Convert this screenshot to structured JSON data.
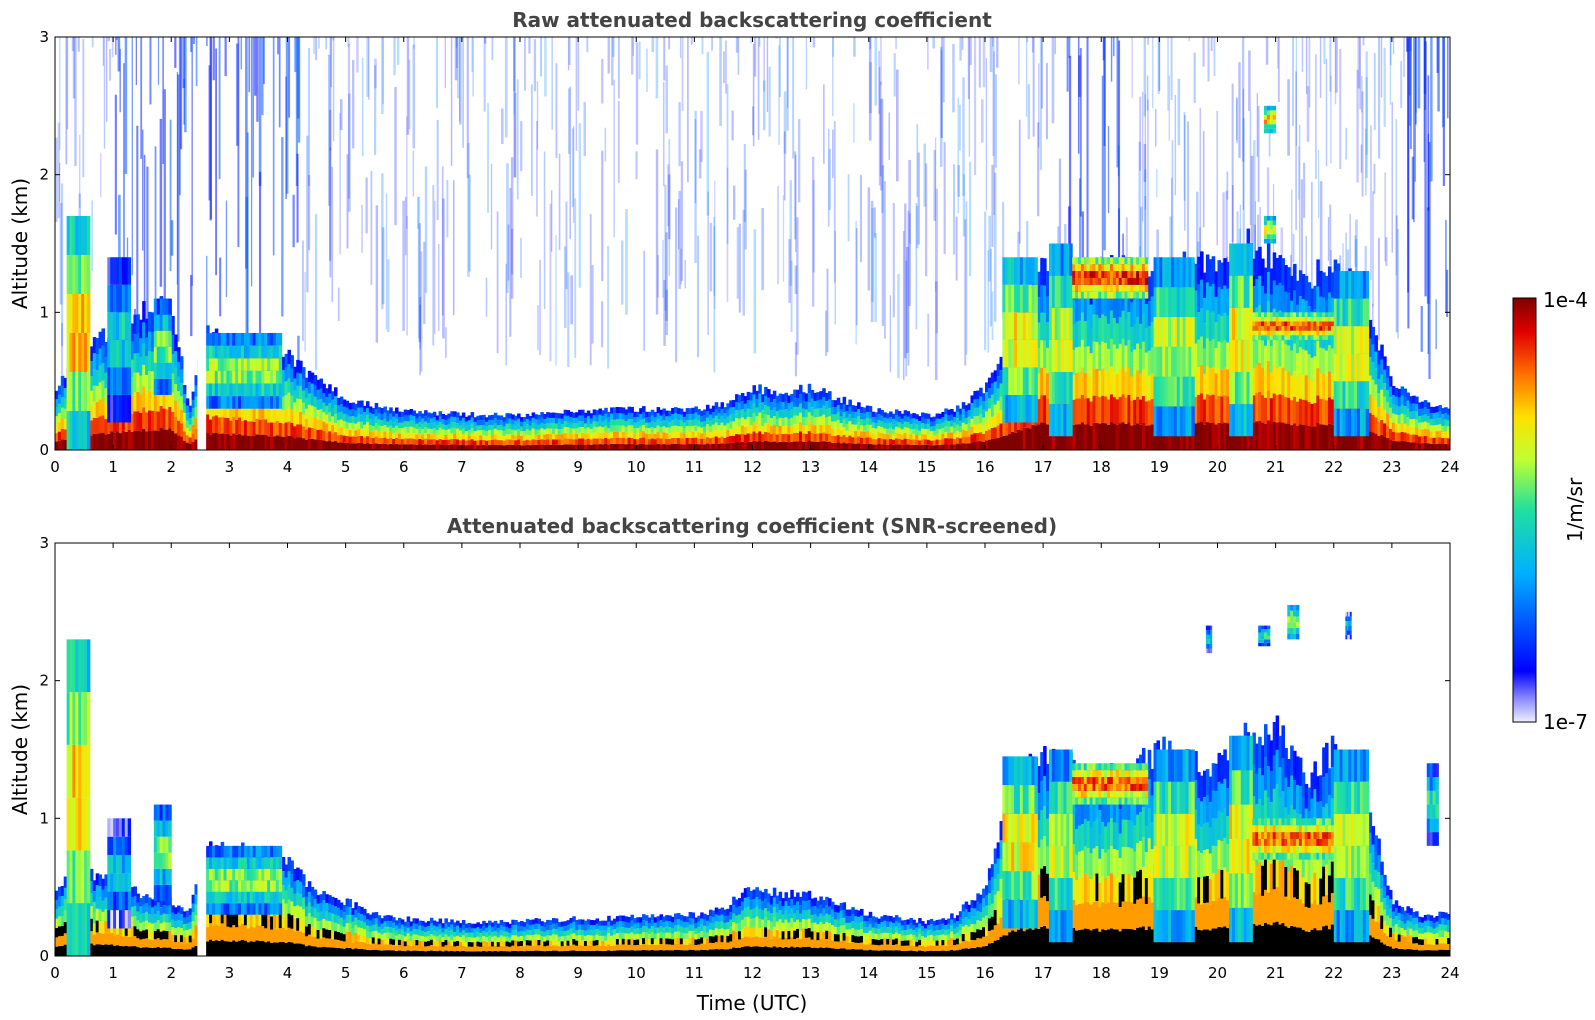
{
  "chart_data": [
    {
      "type": "heatmap",
      "title": "Raw attenuated backscattering coefficient",
      "xlabel": "",
      "ylabel": "Altitude (km)",
      "xlim": [
        0,
        24
      ],
      "ylim": [
        0,
        3
      ],
      "x_ticks": [
        0,
        1,
        2,
        3,
        4,
        5,
        6,
        7,
        8,
        9,
        10,
        11,
        12,
        13,
        14,
        15,
        16,
        17,
        18,
        19,
        20,
        21,
        22,
        23,
        24
      ],
      "y_ticks": [
        0,
        1,
        2,
        3
      ],
      "grid": false,
      "noise_background": true,
      "data_gaps": [
        [
          2.45,
          2.6
        ]
      ],
      "boundary_layer": [
        [
          0,
          0.45
        ],
        [
          0.5,
          0.7
        ],
        [
          1,
          0.9
        ],
        [
          1.5,
          1.0
        ],
        [
          2,
          1.1
        ],
        [
          2.3,
          0.3
        ],
        [
          2.6,
          0.85
        ],
        [
          3,
          0.8
        ],
        [
          3.5,
          0.75
        ],
        [
          4,
          0.7
        ],
        [
          4.5,
          0.5
        ],
        [
          5,
          0.38
        ],
        [
          5.5,
          0.32
        ],
        [
          6,
          0.28
        ],
        [
          7,
          0.26
        ],
        [
          8,
          0.25
        ],
        [
          9,
          0.28
        ],
        [
          10,
          0.3
        ],
        [
          11,
          0.3
        ],
        [
          11.5,
          0.33
        ],
        [
          12,
          0.45
        ],
        [
          12.5,
          0.42
        ],
        [
          13,
          0.45
        ],
        [
          14,
          0.3
        ],
        [
          15,
          0.25
        ],
        [
          15.5,
          0.3
        ],
        [
          16,
          0.45
        ],
        [
          16.5,
          0.9
        ],
        [
          17,
          1.4
        ],
        [
          17.5,
          1.3
        ],
        [
          18,
          1.35
        ],
        [
          18.5,
          1.3
        ],
        [
          19,
          1.35
        ],
        [
          19.5,
          1.4
        ],
        [
          20,
          1.3
        ],
        [
          20.5,
          1.5
        ],
        [
          21,
          1.4
        ],
        [
          21.5,
          1.2
        ],
        [
          22,
          1.4
        ],
        [
          22.5,
          1.1
        ],
        [
          23,
          0.5
        ],
        [
          23.5,
          0.35
        ],
        [
          24,
          0.3
        ]
      ],
      "cloud_patches": [
        {
          "x": [
            0.2,
            0.6
          ],
          "y": [
            0.0,
            1.7
          ],
          "level": 0.8
        },
        {
          "x": [
            0.9,
            1.3
          ],
          "y": [
            0.2,
            1.4
          ],
          "level": 0.5
        },
        {
          "x": [
            1.7,
            2.0
          ],
          "y": [
            0.4,
            1.1
          ],
          "level": 0.6
        },
        {
          "x": [
            2.6,
            3.9
          ],
          "y": [
            0.3,
            0.85
          ],
          "level": 0.65
        },
        {
          "x": [
            16.3,
            16.9
          ],
          "y": [
            0.2,
            1.4
          ],
          "level": 0.75
        },
        {
          "x": [
            17.1,
            17.5
          ],
          "y": [
            0.1,
            1.5
          ],
          "level": 0.7
        },
        {
          "x": [
            17.5,
            18.8
          ],
          "y": [
            1.1,
            1.4
          ],
          "level": 0.95
        },
        {
          "x": [
            18.9,
            19.6
          ],
          "y": [
            0.1,
            1.4
          ],
          "level": 0.7
        },
        {
          "x": [
            20.2,
            20.6
          ],
          "y": [
            0.1,
            1.5
          ],
          "level": 0.75
        },
        {
          "x": [
            20.6,
            22.0
          ],
          "y": [
            0.8,
            1.0
          ],
          "level": 0.9
        },
        {
          "x": [
            22.0,
            22.6
          ],
          "y": [
            0.1,
            1.3
          ],
          "level": 0.7
        },
        {
          "x": [
            20.8,
            21.0
          ],
          "y": [
            2.3,
            2.5
          ],
          "level": 0.8
        },
        {
          "x": [
            20.8,
            21.0
          ],
          "y": [
            1.5,
            1.7
          ],
          "level": 0.75
        }
      ],
      "faint_patches": [
        {
          "x": [
            17.0,
            17.6
          ],
          "y": [
            0.2,
            0.9
          ],
          "level": 0.05
        },
        {
          "x": [
            17.8,
            18.6
          ],
          "y": [
            0.2,
            1.0
          ],
          "level": 0.05
        },
        {
          "x": [
            20.6,
            21.8
          ],
          "y": [
            0.15,
            0.7
          ],
          "level": 0.05
        }
      ]
    },
    {
      "type": "heatmap",
      "title": "Attenuated backscattering coefficient (SNR-screened)",
      "xlabel": "Time (UTC)",
      "ylabel": "Altitude (km)",
      "xlim": [
        0,
        24
      ],
      "ylim": [
        0,
        3
      ],
      "x_ticks": [
        0,
        1,
        2,
        3,
        4,
        5,
        6,
        7,
        8,
        9,
        10,
        11,
        12,
        13,
        14,
        15,
        16,
        17,
        18,
        19,
        20,
        21,
        22,
        23,
        24
      ],
      "y_ticks": [
        0,
        1,
        2,
        3
      ],
      "grid": false,
      "noise_background": false,
      "data_gaps": [
        [
          2.45,
          2.6
        ]
      ],
      "boundary_layer": [
        [
          0,
          0.5
        ],
        [
          0.5,
          0.6
        ],
        [
          1,
          0.55
        ],
        [
          1.5,
          0.45
        ],
        [
          2,
          0.4
        ],
        [
          2.3,
          0.3
        ],
        [
          2.6,
          0.8
        ],
        [
          3,
          0.78
        ],
        [
          3.5,
          0.75
        ],
        [
          4,
          0.7
        ],
        [
          4.5,
          0.45
        ],
        [
          5,
          0.4
        ],
        [
          5.5,
          0.3
        ],
        [
          6,
          0.27
        ],
        [
          7,
          0.25
        ],
        [
          8,
          0.25
        ],
        [
          9,
          0.27
        ],
        [
          10,
          0.28
        ],
        [
          11,
          0.3
        ],
        [
          11.5,
          0.35
        ],
        [
          12,
          0.5
        ],
        [
          12.5,
          0.45
        ],
        [
          13,
          0.45
        ],
        [
          14,
          0.3
        ],
        [
          15,
          0.25
        ],
        [
          15.5,
          0.3
        ],
        [
          16,
          0.5
        ],
        [
          16.5,
          1.3
        ],
        [
          17,
          1.45
        ],
        [
          17.5,
          1.4
        ],
        [
          18,
          1.3
        ],
        [
          18.5,
          1.35
        ],
        [
          19,
          1.5
        ],
        [
          19.5,
          1.4
        ],
        [
          20,
          1.4
        ],
        [
          20.5,
          1.6
        ],
        [
          21,
          1.7
        ],
        [
          21.5,
          1.3
        ],
        [
          22,
          1.5
        ],
        [
          22.5,
          1.3
        ],
        [
          23,
          0.4
        ],
        [
          23.5,
          0.3
        ],
        [
          24,
          0.3
        ]
      ],
      "cloud_patches": [
        {
          "x": [
            0.2,
            0.6
          ],
          "y": [
            0.0,
            2.3
          ],
          "level": 0.8
        },
        {
          "x": [
            0.9,
            1.3
          ],
          "y": [
            0.2,
            1.0
          ],
          "level": 0.45
        },
        {
          "x": [
            1.7,
            2.0
          ],
          "y": [
            0.4,
            1.1
          ],
          "level": 0.6
        },
        {
          "x": [
            2.6,
            3.9
          ],
          "y": [
            0.3,
            0.8
          ],
          "level": 0.65
        },
        {
          "x": [
            16.3,
            16.9
          ],
          "y": [
            0.2,
            1.45
          ],
          "level": 0.75
        },
        {
          "x": [
            17.1,
            17.5
          ],
          "y": [
            0.1,
            1.5
          ],
          "level": 0.7
        },
        {
          "x": [
            17.5,
            18.8
          ],
          "y": [
            1.1,
            1.4
          ],
          "level": 0.9
        },
        {
          "x": [
            18.9,
            19.6
          ],
          "y": [
            0.1,
            1.5
          ],
          "level": 0.72
        },
        {
          "x": [
            20.2,
            20.6
          ],
          "y": [
            0.1,
            1.6
          ],
          "level": 0.75
        },
        {
          "x": [
            20.6,
            22.0
          ],
          "y": [
            0.7,
            1.0
          ],
          "level": 0.9
        },
        {
          "x": [
            22.0,
            22.6
          ],
          "y": [
            0.1,
            1.5
          ],
          "level": 0.7
        },
        {
          "x": [
            21.2,
            21.4
          ],
          "y": [
            2.3,
            2.55
          ],
          "level": 0.7
        },
        {
          "x": [
            20.7,
            20.9
          ],
          "y": [
            2.25,
            2.4
          ],
          "level": 0.55
        },
        {
          "x": [
            19.8,
            19.9
          ],
          "y": [
            2.2,
            2.4
          ],
          "level": 0.5
        },
        {
          "x": [
            22.2,
            22.3
          ],
          "y": [
            2.3,
            2.5
          ],
          "level": 0.45
        },
        {
          "x": [
            23.6,
            23.8
          ],
          "y": [
            0.8,
            1.4
          ],
          "level": 0.55
        }
      ],
      "faint_patches": [
        {
          "x": [
            17.0,
            17.6
          ],
          "y": [
            0.2,
            0.9
          ],
          "level": 0.05
        },
        {
          "x": [
            17.8,
            18.6
          ],
          "y": [
            0.2,
            1.0
          ],
          "level": 0.05
        },
        {
          "x": [
            20.6,
            21.8
          ],
          "y": [
            0.15,
            0.7
          ],
          "level": 0.05
        }
      ]
    }
  ],
  "colorbar": {
    "max_label": "1e-4",
    "min_label": "1e-7",
    "label": "1/m/sr",
    "colormap": "jet",
    "low_end_color": "#eef0ff",
    "high_end_color": "#800000"
  }
}
